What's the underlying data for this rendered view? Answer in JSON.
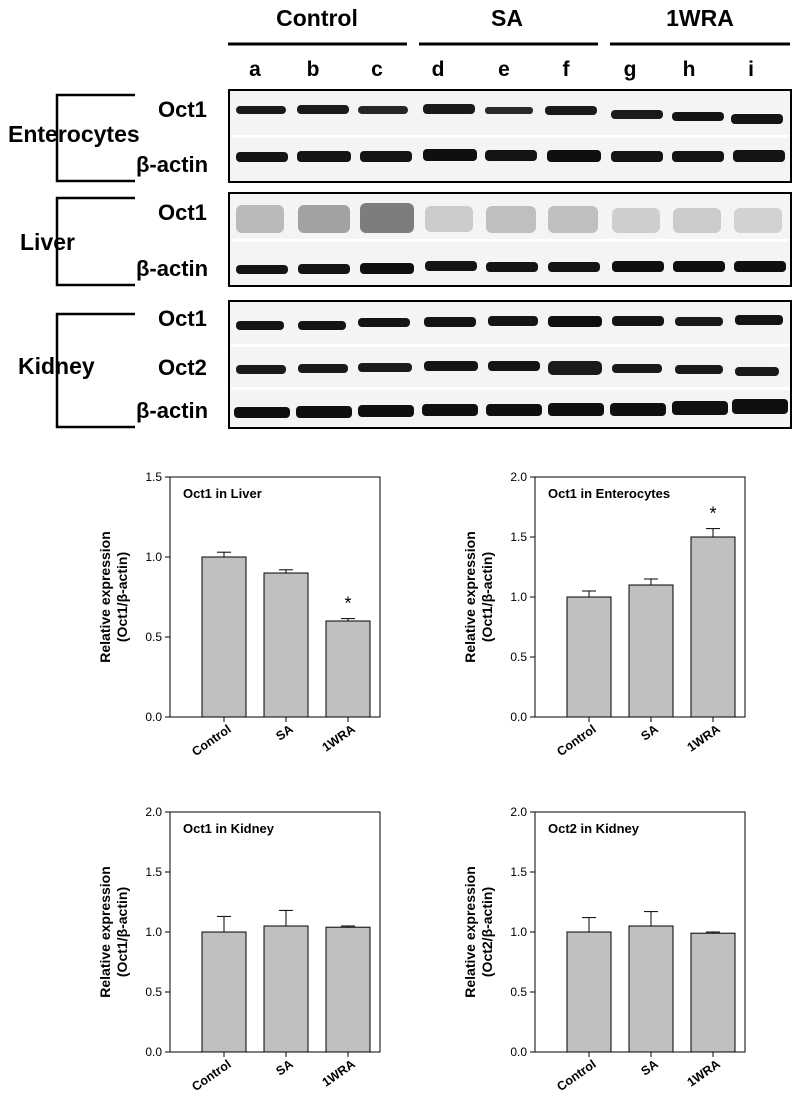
{
  "blot": {
    "groups": [
      "Control",
      "SA",
      "1WRA"
    ],
    "lanes": [
      "a",
      "b",
      "c",
      "d",
      "e",
      "f",
      "g",
      "h",
      "i"
    ],
    "panels": [
      {
        "tissue": "Enterocytes",
        "rows": [
          "Oct1",
          "β-actin"
        ]
      },
      {
        "tissue": "Liver",
        "rows": [
          "Oct1",
          "β-actin"
        ]
      },
      {
        "tissue": "Kidney",
        "rows": [
          "Oct1",
          "Oct2",
          "β-actin"
        ]
      }
    ]
  },
  "chart_data": [
    {
      "type": "bar",
      "title": "Oct1 in Liver",
      "ylabel": "Relative expression",
      "ylabel2": "(Oct1/β-actin)",
      "categories": [
        "Control",
        "SA",
        "1WRA"
      ],
      "values": [
        1.0,
        0.9,
        0.6
      ],
      "errors": [
        0.03,
        0.02,
        0.015
      ],
      "significance": [
        "",
        "",
        "*"
      ],
      "ylim": [
        0,
        1.5
      ],
      "yticks": [
        "0.0",
        "0.5",
        "1.0",
        "1.5"
      ],
      "bar_color": "#c0c0c0"
    },
    {
      "type": "bar",
      "title": "Oct1 in Enterocytes",
      "ylabel": "Relative expression",
      "ylabel2": "(Oct1/β-actin)",
      "categories": [
        "Control",
        "SA",
        "1WRA"
      ],
      "values": [
        1.0,
        1.1,
        1.5
      ],
      "errors": [
        0.05,
        0.05,
        0.07
      ],
      "significance": [
        "",
        "",
        "*"
      ],
      "ylim": [
        0,
        2.0
      ],
      "yticks": [
        "0.0",
        "0.5",
        "1.0",
        "1.5",
        "2.0"
      ],
      "bar_color": "#c0c0c0"
    },
    {
      "type": "bar",
      "title": "Oct1 in Kidney",
      "ylabel": "Relative expression",
      "ylabel2": "(Oct1/β-actin)",
      "categories": [
        "Control",
        "SA",
        "1WRA"
      ],
      "values": [
        1.0,
        1.05,
        1.04
      ],
      "errors": [
        0.13,
        0.13,
        0.01
      ],
      "significance": [
        "",
        "",
        ""
      ],
      "ylim": [
        0,
        2.0
      ],
      "yticks": [
        "0.0",
        "0.5",
        "1.0",
        "1.5",
        "2.0"
      ],
      "bar_color": "#c0c0c0"
    },
    {
      "type": "bar",
      "title": "Oct2 in Kidney",
      "ylabel": "Relative expression",
      "ylabel2": "(Oct2/β-actin)",
      "categories": [
        "Control",
        "SA",
        "1WRA"
      ],
      "values": [
        1.0,
        1.05,
        0.99
      ],
      "errors": [
        0.12,
        0.12,
        0.01
      ],
      "significance": [
        "",
        "",
        ""
      ],
      "ylim": [
        0,
        2.0
      ],
      "yticks": [
        "0.0",
        "0.5",
        "1.0",
        "1.5",
        "2.0"
      ],
      "bar_color": "#c0c0c0"
    }
  ]
}
